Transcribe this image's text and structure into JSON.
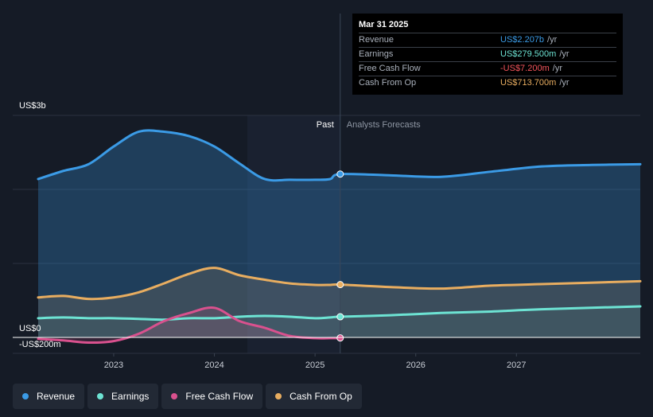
{
  "chart_data": {
    "type": "line",
    "y_unit_label": "US$3b",
    "y_zero_label": "US$0",
    "y_neg_label": "-US$200m",
    "ylim": [
      -200,
      3000
    ],
    "xlim": [
      2022.0,
      2027.98
    ],
    "x_ticks": [
      {
        "value": 2022.75,
        "label": "2023"
      },
      {
        "value": 2023.75,
        "label": "2024"
      },
      {
        "value": 2024.75,
        "label": "2025"
      },
      {
        "value": 2025.75,
        "label": "2026"
      },
      {
        "value": 2026.75,
        "label": "2027"
      }
    ],
    "past_label": "Past",
    "forecast_label": "Analysts Forecasts",
    "past_end": 2025.0,
    "series": [
      {
        "name": "Revenue",
        "color": "#3b9be6",
        "points": [
          [
            2022.0,
            2140
          ],
          [
            2022.25,
            2250
          ],
          [
            2022.5,
            2340
          ],
          [
            2022.75,
            2580
          ],
          [
            2023.0,
            2780
          ],
          [
            2023.25,
            2780
          ],
          [
            2023.5,
            2720
          ],
          [
            2023.75,
            2580
          ],
          [
            2024.0,
            2350
          ],
          [
            2024.25,
            2140
          ],
          [
            2024.5,
            2130
          ],
          [
            2024.75,
            2130
          ],
          [
            2024.9,
            2140
          ],
          [
            2025.0,
            2207
          ],
          [
            2025.5,
            2190
          ],
          [
            2026.0,
            2170
          ],
          [
            2026.5,
            2240
          ],
          [
            2027.0,
            2310
          ],
          [
            2027.5,
            2330
          ],
          [
            2027.98,
            2340
          ]
        ]
      },
      {
        "name": "Earnings",
        "color": "#6de3d3",
        "points": [
          [
            2022.0,
            260
          ],
          [
            2022.25,
            270
          ],
          [
            2022.5,
            260
          ],
          [
            2022.75,
            260
          ],
          [
            2023.0,
            250
          ],
          [
            2023.25,
            240
          ],
          [
            2023.5,
            260
          ],
          [
            2023.75,
            260
          ],
          [
            2024.0,
            280
          ],
          [
            2024.25,
            290
          ],
          [
            2024.5,
            280
          ],
          [
            2024.75,
            260
          ],
          [
            2024.9,
            270
          ],
          [
            2025.0,
            279.5
          ],
          [
            2025.5,
            300
          ],
          [
            2026.0,
            330
          ],
          [
            2026.5,
            350
          ],
          [
            2027.0,
            380
          ],
          [
            2027.98,
            420
          ]
        ]
      },
      {
        "name": "Free Cash Flow",
        "color": "#d9518e",
        "points": [
          [
            2022.0,
            -20
          ],
          [
            2022.25,
            -40
          ],
          [
            2022.5,
            -70
          ],
          [
            2022.75,
            -50
          ],
          [
            2023.0,
            50
          ],
          [
            2023.25,
            220
          ],
          [
            2023.5,
            330
          ],
          [
            2023.75,
            400
          ],
          [
            2024.0,
            220
          ],
          [
            2024.25,
            130
          ],
          [
            2024.5,
            20
          ],
          [
            2024.75,
            -10
          ],
          [
            2024.9,
            -10
          ],
          [
            2025.0,
            -7.2
          ]
        ]
      },
      {
        "name": "Cash From Op",
        "color": "#e8ad60",
        "points": [
          [
            2022.0,
            540
          ],
          [
            2022.25,
            560
          ],
          [
            2022.5,
            520
          ],
          [
            2022.75,
            540
          ],
          [
            2023.0,
            610
          ],
          [
            2023.25,
            730
          ],
          [
            2023.5,
            860
          ],
          [
            2023.75,
            940
          ],
          [
            2024.0,
            840
          ],
          [
            2024.25,
            780
          ],
          [
            2024.5,
            730
          ],
          [
            2024.75,
            710
          ],
          [
            2024.9,
            710
          ],
          [
            2025.0,
            713.7
          ],
          [
            2025.5,
            680
          ],
          [
            2026.0,
            660
          ],
          [
            2026.5,
            700
          ],
          [
            2027.0,
            720
          ],
          [
            2027.98,
            760
          ]
        ]
      }
    ]
  },
  "tooltip": {
    "date": "Mar 31 2025",
    "rows": [
      {
        "label": "Revenue",
        "value": "US$2.207b",
        "unit": "/yr",
        "color": "#3b9be6"
      },
      {
        "label": "Earnings",
        "value": "US$279.500m",
        "unit": "/yr",
        "color": "#6de3d3"
      },
      {
        "label": "Free Cash Flow",
        "value": "-US$7.200m",
        "unit": "/yr",
        "color": "#f2545b"
      },
      {
        "label": "Cash From Op",
        "value": "US$713.700m",
        "unit": "/yr",
        "color": "#e8ad60"
      }
    ]
  },
  "legend": [
    {
      "label": "Revenue",
      "color": "#3b9be6"
    },
    {
      "label": "Earnings",
      "color": "#6de3d3"
    },
    {
      "label": "Free Cash Flow",
      "color": "#d9518e"
    },
    {
      "label": "Cash From Op",
      "color": "#e8ad60"
    }
  ]
}
